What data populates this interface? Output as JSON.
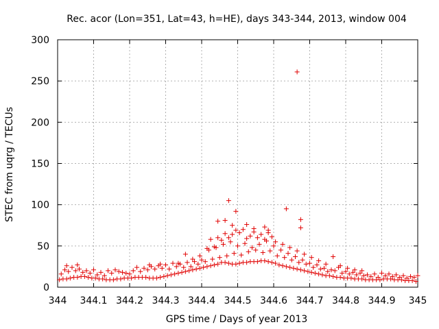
{
  "chart_data": {
    "type": "scatter",
    "title": "Rec. acor (Lon=351, Lat=43, h=HE), days 343-344, 2013, window 004",
    "xlabel": "GPS time / Days of year 2013",
    "ylabel": "STEC from uqrg / TECUs",
    "xlim": [
      344,
      345
    ],
    "ylim": [
      0,
      300
    ],
    "xticks": [
      "344",
      "344.1",
      "344.2",
      "344.3",
      "344.4",
      "344.5",
      "344.6",
      "344.7",
      "344.8",
      "344.9",
      "345"
    ],
    "yticks": [
      "0",
      "50",
      "100",
      "150",
      "200",
      "250",
      "300"
    ],
    "grid": true,
    "marker": "+",
    "marker_color": "#e00000",
    "series": [
      {
        "name": "STEC",
        "points": [
          [
            344.005,
            9
          ],
          [
            344.015,
            10
          ],
          [
            344.025,
            10
          ],
          [
            344.035,
            11
          ],
          [
            344.045,
            12
          ],
          [
            344.055,
            12
          ],
          [
            344.065,
            13
          ],
          [
            344.075,
            13
          ],
          [
            344.085,
            12
          ],
          [
            344.095,
            11
          ],
          [
            344.105,
            11
          ],
          [
            344.115,
            10
          ],
          [
            344.125,
            10
          ],
          [
            344.135,
            9
          ],
          [
            344.145,
            9
          ],
          [
            344.155,
            9
          ],
          [
            344.165,
            10
          ],
          [
            344.175,
            10
          ],
          [
            344.185,
            11
          ],
          [
            344.195,
            11
          ],
          [
            344.205,
            11
          ],
          [
            344.215,
            12
          ],
          [
            344.225,
            12
          ],
          [
            344.235,
            12
          ],
          [
            344.245,
            12
          ],
          [
            344.255,
            11
          ],
          [
            344.265,
            11
          ],
          [
            344.275,
            11
          ],
          [
            344.285,
            12
          ],
          [
            344.295,
            13
          ],
          [
            344.305,
            14
          ],
          [
            344.315,
            15
          ],
          [
            344.325,
            16
          ],
          [
            344.335,
            17
          ],
          [
            344.345,
            18
          ],
          [
            344.355,
            19
          ],
          [
            344.365,
            20
          ],
          [
            344.375,
            21
          ],
          [
            344.385,
            22
          ],
          [
            344.395,
            23
          ],
          [
            344.405,
            24
          ],
          [
            344.415,
            25
          ],
          [
            344.425,
            26
          ],
          [
            344.435,
            27
          ],
          [
            344.445,
            28
          ],
          [
            344.455,
            30
          ],
          [
            344.465,
            30
          ],
          [
            344.475,
            29
          ],
          [
            344.485,
            28
          ],
          [
            344.495,
            28
          ],
          [
            344.505,
            29
          ],
          [
            344.515,
            30
          ],
          [
            344.525,
            30
          ],
          [
            344.535,
            31
          ],
          [
            344.545,
            31
          ],
          [
            344.555,
            31
          ],
          [
            344.565,
            32
          ],
          [
            344.575,
            32
          ],
          [
            344.585,
            31
          ],
          [
            344.595,
            30
          ],
          [
            344.605,
            29
          ],
          [
            344.615,
            27
          ],
          [
            344.625,
            26
          ],
          [
            344.635,
            25
          ],
          [
            344.645,
            24
          ],
          [
            344.655,
            23
          ],
          [
            344.665,
            22
          ],
          [
            344.675,
            21
          ],
          [
            344.685,
            20
          ],
          [
            344.695,
            19
          ],
          [
            344.705,
            18
          ],
          [
            344.715,
            17
          ],
          [
            344.725,
            16
          ],
          [
            344.735,
            15
          ],
          [
            344.745,
            14
          ],
          [
            344.755,
            14
          ],
          [
            344.765,
            13
          ],
          [
            344.775,
            12
          ],
          [
            344.785,
            12
          ],
          [
            344.795,
            11
          ],
          [
            344.805,
            11
          ],
          [
            344.815,
            11
          ],
          [
            344.825,
            10
          ],
          [
            344.835,
            10
          ],
          [
            344.845,
            10
          ],
          [
            344.855,
            9
          ],
          [
            344.865,
            9
          ],
          [
            344.875,
            9
          ],
          [
            344.885,
            9
          ],
          [
            344.895,
            9
          ],
          [
            344.905,
            10
          ],
          [
            344.915,
            10
          ],
          [
            344.925,
            10
          ],
          [
            344.935,
            9
          ],
          [
            344.945,
            9
          ],
          [
            344.955,
            9
          ],
          [
            344.965,
            8
          ],
          [
            344.975,
            8
          ],
          [
            344.985,
            8
          ],
          [
            344.995,
            7
          ],
          [
            344.01,
            16
          ],
          [
            344.03,
            19
          ],
          [
            344.05,
            20
          ],
          [
            344.07,
            18
          ],
          [
            344.09,
            17
          ],
          [
            344.11,
            15
          ],
          [
            344.13,
            14
          ],
          [
            344.15,
            17
          ],
          [
            344.17,
            19
          ],
          [
            344.19,
            17
          ],
          [
            344.21,
            20
          ],
          [
            344.23,
            19
          ],
          [
            344.25,
            21
          ],
          [
            344.27,
            22
          ],
          [
            344.29,
            23
          ],
          [
            344.31,
            22
          ],
          [
            344.33,
            25
          ],
          [
            344.35,
            24
          ],
          [
            344.37,
            25
          ],
          [
            344.39,
            28
          ],
          [
            344.41,
            31
          ],
          [
            344.43,
            34
          ],
          [
            344.45,
            36
          ],
          [
            344.47,
            38
          ],
          [
            344.49,
            41
          ],
          [
            344.51,
            39
          ],
          [
            344.53,
            43
          ],
          [
            344.55,
            45
          ],
          [
            344.57,
            42
          ],
          [
            344.59,
            44
          ],
          [
            344.61,
            38
          ],
          [
            344.63,
            36
          ],
          [
            344.65,
            33
          ],
          [
            344.67,
            30
          ],
          [
            344.69,
            28
          ],
          [
            344.71,
            24
          ],
          [
            344.73,
            22
          ],
          [
            344.75,
            19
          ],
          [
            344.77,
            20
          ],
          [
            344.79,
            17
          ],
          [
            344.81,
            16
          ],
          [
            344.83,
            15
          ],
          [
            344.85,
            14
          ],
          [
            344.87,
            13
          ],
          [
            344.89,
            12
          ],
          [
            344.91,
            14
          ],
          [
            344.93,
            13
          ],
          [
            344.95,
            12
          ],
          [
            344.97,
            11
          ],
          [
            344.99,
            12
          ],
          [
            344.02,
            21
          ],
          [
            344.04,
            24
          ],
          [
            344.06,
            22
          ],
          [
            344.08,
            20
          ],
          [
            344.1,
            21
          ],
          [
            344.12,
            18
          ],
          [
            344.14,
            20
          ],
          [
            344.16,
            21
          ],
          [
            344.18,
            18
          ],
          [
            344.2,
            16
          ],
          [
            344.22,
            24
          ],
          [
            344.24,
            23
          ],
          [
            344.26,
            25
          ],
          [
            344.28,
            26
          ],
          [
            344.3,
            27
          ],
          [
            344.32,
            29
          ],
          [
            344.34,
            28
          ],
          [
            344.36,
            30
          ],
          [
            344.38,
            31
          ],
          [
            344.4,
            33
          ],
          [
            344.42,
            45
          ],
          [
            344.44,
            48
          ],
          [
            344.46,
            52
          ],
          [
            344.48,
            55
          ],
          [
            344.5,
            50
          ],
          [
            344.52,
            53
          ],
          [
            344.54,
            48
          ],
          [
            344.56,
            52
          ],
          [
            344.58,
            56
          ],
          [
            344.6,
            50
          ],
          [
            344.62,
            45
          ],
          [
            344.64,
            41
          ],
          [
            344.66,
            37
          ],
          [
            344.68,
            33
          ],
          [
            344.7,
            29
          ],
          [
            344.72,
            27
          ],
          [
            344.74,
            23
          ],
          [
            344.76,
            21
          ],
          [
            344.78,
            24
          ],
          [
            344.8,
            19
          ],
          [
            344.82,
            18
          ],
          [
            344.84,
            17
          ],
          [
            344.86,
            15
          ],
          [
            344.88,
            16
          ],
          [
            344.9,
            17
          ],
          [
            344.92,
            16
          ],
          [
            344.94,
            15
          ],
          [
            344.96,
            14
          ],
          [
            344.98,
            13
          ],
          [
            345.0,
            14
          ],
          [
            344.025,
            26
          ],
          [
            344.055,
            27
          ],
          [
            344.255,
            27
          ],
          [
            344.285,
            28
          ],
          [
            344.335,
            29
          ],
          [
            344.355,
            40
          ],
          [
            344.375,
            34
          ],
          [
            344.395,
            38
          ],
          [
            344.415,
            47
          ],
          [
            344.425,
            58
          ],
          [
            344.435,
            49
          ],
          [
            344.445,
            60
          ],
          [
            344.455,
            57
          ],
          [
            344.465,
            65
          ],
          [
            344.475,
            60
          ],
          [
            344.485,
            64
          ],
          [
            344.495,
            69
          ],
          [
            344.505,
            66
          ],
          [
            344.515,
            70
          ],
          [
            344.525,
            59
          ],
          [
            344.535,
            62
          ],
          [
            344.545,
            67
          ],
          [
            344.555,
            60
          ],
          [
            344.565,
            64
          ],
          [
            344.575,
            58
          ],
          [
            344.585,
            66
          ],
          [
            344.595,
            61
          ],
          [
            344.605,
            55
          ],
          [
            344.625,
            52
          ],
          [
            344.645,
            48
          ],
          [
            344.665,
            44
          ],
          [
            344.685,
            40
          ],
          [
            344.705,
            36
          ],
          [
            344.725,
            32
          ],
          [
            344.745,
            28
          ],
          [
            344.765,
            37
          ],
          [
            344.785,
            26
          ],
          [
            344.805,
            23
          ],
          [
            344.825,
            21
          ],
          [
            344.845,
            20
          ],
          [
            344.445,
            80
          ],
          [
            344.465,
            81
          ],
          [
            344.475,
            105
          ],
          [
            344.485,
            75
          ],
          [
            344.495,
            92
          ],
          [
            344.525,
            76
          ],
          [
            344.545,
            71
          ],
          [
            344.575,
            73
          ],
          [
            344.585,
            69
          ],
          [
            344.635,
            95
          ],
          [
            344.675,
            82
          ],
          [
            344.675,
            72
          ],
          [
            344.665,
            261
          ]
        ]
      }
    ]
  }
}
